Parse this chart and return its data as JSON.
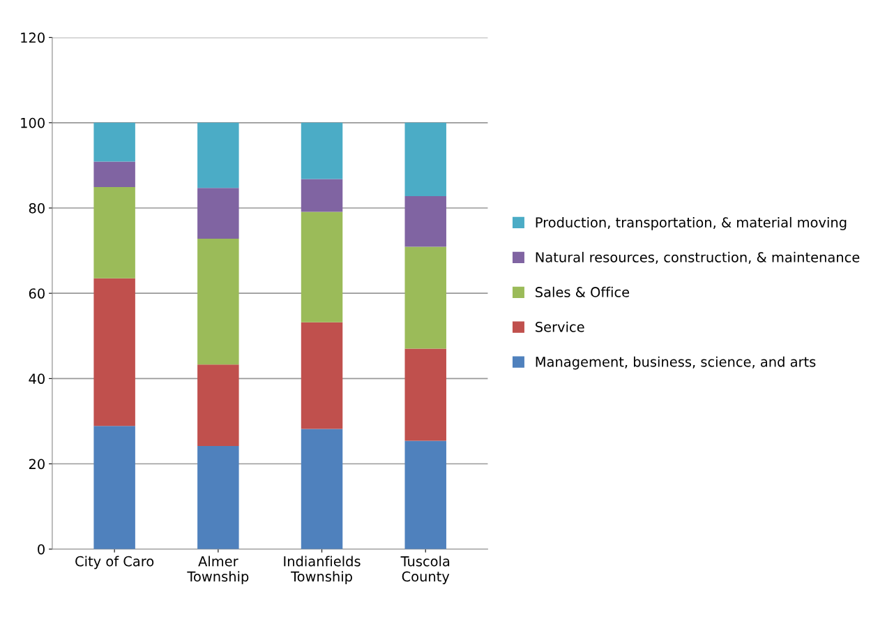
{
  "chart_data": {
    "type": "bar",
    "stacked": true,
    "categories": [
      "City of Caro",
      "Almer\nTownship",
      "Indianfields\nTownship",
      "Tuscola\nCounty"
    ],
    "series": [
      {
        "name": "Management, business, science, and arts",
        "color": "#4f81bd",
        "values": [
          28.9,
          24.2,
          28.2,
          25.4
        ]
      },
      {
        "name": "Service",
        "color": "#c0504d",
        "values": [
          34.6,
          19.1,
          25.0,
          21.6
        ]
      },
      {
        "name": "Sales & Office",
        "color": "#9bbb59",
        "values": [
          21.4,
          29.5,
          25.9,
          23.9
        ]
      },
      {
        "name": "Natural resources, construction, & maintenance",
        "color": "#8064a2",
        "values": [
          6.0,
          11.9,
          7.7,
          11.9
        ]
      },
      {
        "name": "Production, transportation, & material moving",
        "color": "#4bacc6",
        "values": [
          9.1,
          15.3,
          13.2,
          17.2
        ]
      }
    ],
    "ylim": [
      0,
      120
    ],
    "yticks": [
      0,
      20,
      40,
      60,
      80,
      100,
      120
    ],
    "grid": "y",
    "legend": "right"
  }
}
